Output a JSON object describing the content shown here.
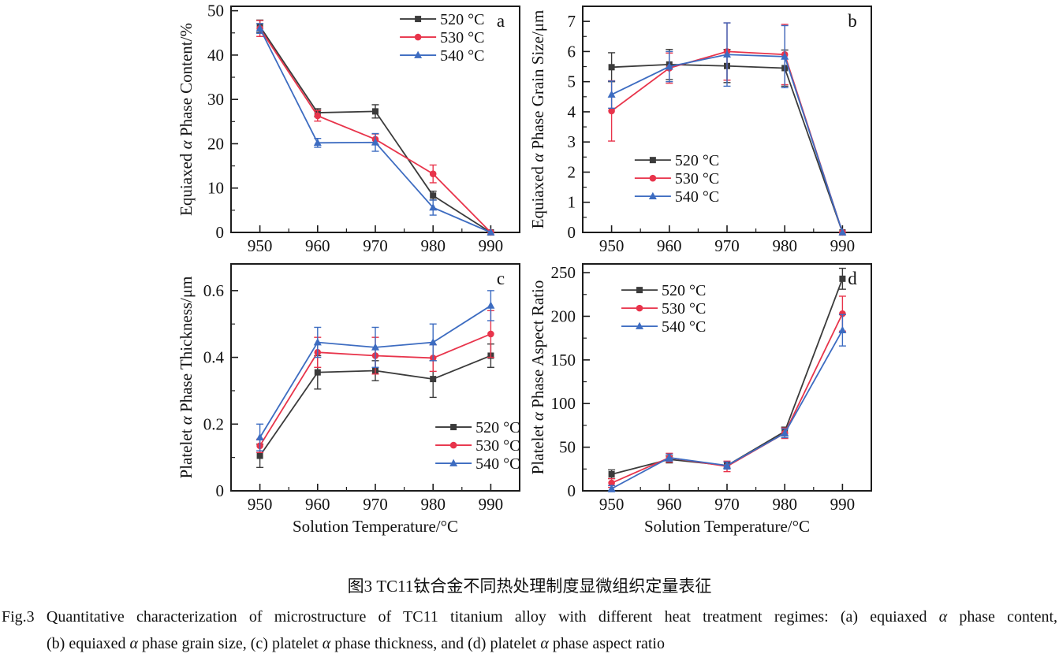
{
  "figure": {
    "caption_zh": "图3 TC11钛合金不同热处理制度显微组织定量表征",
    "caption_en_line1": "Fig.3 Quantitative characterization of microstructure of TC11 titanium alloy with different heat treatment regimes: (a) equiaxed α phase content,",
    "caption_en_line2": "(b) equiaxed α phase grain size, (c) platelet α phase thickness, and (d) platelet α phase aspect ratio"
  },
  "colors": {
    "series_520": "#3b3b3b",
    "series_530": "#e8344b",
    "series_540": "#3d6cc1",
    "axis": "#1c1c1c",
    "text": "#111111"
  },
  "chart_data": [
    {
      "id": "a",
      "type": "line",
      "panel_letter": "a",
      "xlabel": "",
      "ylabel": "Equiaxed α Phase Content/%",
      "x": [
        950,
        960,
        970,
        980,
        990
      ],
      "xlim": [
        945,
        995
      ],
      "xticks": [
        950,
        960,
        970,
        980,
        990
      ],
      "x_minor_step": 5,
      "ylim": [
        0,
        51
      ],
      "yticks": [
        0,
        10,
        20,
        30,
        40,
        50
      ],
      "ytick_labels": [
        "0",
        "10",
        "20",
        "30",
        "40",
        "50"
      ],
      "y_minor_step": 5,
      "grid": false,
      "legend": {
        "fx": 0.585,
        "fy": 0.056
      },
      "series": [
        {
          "name": "520 °C",
          "marker": "square",
          "color": "#3b3b3b",
          "values": [
            46.5,
            27.0,
            27.3,
            8.3,
            0
          ],
          "errors": [
            1.4,
            0.9,
            1.5,
            1.0,
            0
          ]
        },
        {
          "name": "530 °C",
          "marker": "circle",
          "color": "#e8344b",
          "values": [
            46.0,
            26.3,
            21.0,
            13.2,
            0
          ],
          "errors": [
            1.8,
            1.2,
            1.2,
            2.0,
            0
          ]
        },
        {
          "name": "540 °C",
          "marker": "triangle",
          "color": "#3d6cc1",
          "values": [
            46.0,
            20.2,
            20.3,
            5.6,
            0
          ],
          "errors": [
            1.1,
            1.0,
            2.0,
            1.7,
            0
          ]
        }
      ]
    },
    {
      "id": "b",
      "type": "line",
      "panel_letter": "b",
      "xlabel": "",
      "ylabel": "Equiaxed α Phase Grain Size/μm",
      "x": [
        950,
        960,
        970,
        980,
        990
      ],
      "xlim": [
        945,
        995
      ],
      "xticks": [
        950,
        960,
        970,
        980,
        990
      ],
      "x_minor_step": 5,
      "ylim": [
        0,
        7.5
      ],
      "yticks": [
        0,
        1,
        2,
        3,
        4,
        5,
        6,
        7
      ],
      "ytick_labels": [
        "0",
        "1",
        "2",
        "3",
        "4",
        "5",
        "6",
        "7"
      ],
      "y_minor_step": 0.5,
      "grid": false,
      "legend": {
        "fx": 0.18,
        "fy": 0.68
      },
      "series": [
        {
          "name": "520 °C",
          "marker": "square",
          "color": "#3b3b3b",
          "values": [
            5.48,
            5.57,
            5.52,
            5.45,
            0
          ],
          "errors": [
            0.48,
            0.5,
            0.55,
            0.6,
            0
          ]
        },
        {
          "name": "530 °C",
          "marker": "circle",
          "color": "#e8344b",
          "values": [
            4.03,
            5.45,
            6.0,
            5.9,
            0
          ],
          "errors": [
            1.0,
            0.5,
            0.95,
            1.0,
            0
          ]
        },
        {
          "name": "540 °C",
          "marker": "triangle",
          "color": "#3d6cc1",
          "values": [
            4.57,
            5.5,
            5.9,
            5.83,
            0
          ],
          "errors": [
            0.45,
            0.5,
            1.05,
            1.03,
            0
          ]
        }
      ]
    },
    {
      "id": "c",
      "type": "line",
      "panel_letter": "c",
      "xlabel": "Solution Temperature/°C",
      "ylabel": "Platelet α Phase Thickness/μm",
      "x": [
        950,
        960,
        970,
        980,
        990
      ],
      "xlim": [
        945,
        995
      ],
      "xticks": [
        950,
        960,
        970,
        980,
        990
      ],
      "x_minor_step": 5,
      "ylim": [
        0,
        0.68
      ],
      "yticks": [
        0,
        0.2,
        0.4,
        0.6
      ],
      "ytick_labels": [
        "0",
        "0.2",
        "0.4",
        "0.6"
      ],
      "y_minor_step": 0.1,
      "grid": false,
      "legend": {
        "fx": 0.708,
        "fy": 0.719
      },
      "series": [
        {
          "name": "520 °C",
          "marker": "square",
          "color": "#3b3b3b",
          "values": [
            0.105,
            0.355,
            0.36,
            0.335,
            0.405
          ],
          "errors": [
            0.035,
            0.05,
            0.03,
            0.055,
            0.035
          ]
        },
        {
          "name": "530 °C",
          "marker": "circle",
          "color": "#e8344b",
          "values": [
            0.135,
            0.415,
            0.405,
            0.398,
            0.47
          ],
          "errors": [
            0.02,
            0.045,
            0.055,
            0.04,
            0.07
          ]
        },
        {
          "name": "540 °C",
          "marker": "triangle",
          "color": "#3d6cc1",
          "values": [
            0.16,
            0.445,
            0.43,
            0.445,
            0.555
          ],
          "errors": [
            0.04,
            0.045,
            0.06,
            0.055,
            0.045
          ]
        }
      ]
    },
    {
      "id": "d",
      "type": "line",
      "panel_letter": "d",
      "xlabel": "Solution Temperature/°C",
      "ylabel": "Platelet α Phase Aspect Ratio",
      "x": [
        950,
        960,
        970,
        980,
        990
      ],
      "xlim": [
        945,
        995
      ],
      "xticks": [
        950,
        960,
        970,
        980,
        990
      ],
      "x_minor_step": 5,
      "ylim": [
        0,
        260
      ],
      "yticks": [
        0,
        50,
        100,
        150,
        200,
        250
      ],
      "ytick_labels": [
        "0",
        "50",
        "100",
        "150",
        "200",
        "250"
      ],
      "y_minor_step": 25,
      "grid": false,
      "legend": {
        "fx": 0.134,
        "fy": 0.115
      },
      "series": [
        {
          "name": "520 °C",
          "marker": "square",
          "color": "#3b3b3b",
          "values": [
            19,
            36,
            29,
            68,
            243
          ],
          "errors": [
            5,
            4,
            4,
            5,
            12
          ]
        },
        {
          "name": "530 °C",
          "marker": "circle",
          "color": "#e8344b",
          "values": [
            9,
            38,
            28,
            66,
            203
          ],
          "errors": [
            5,
            5,
            6,
            6,
            20
          ]
        },
        {
          "name": "540 °C",
          "marker": "triangle",
          "color": "#3d6cc1",
          "values": [
            2.5,
            38,
            29,
            66,
            184
          ],
          "errors": [
            3.5,
            4,
            4,
            5,
            18
          ]
        }
      ]
    }
  ]
}
